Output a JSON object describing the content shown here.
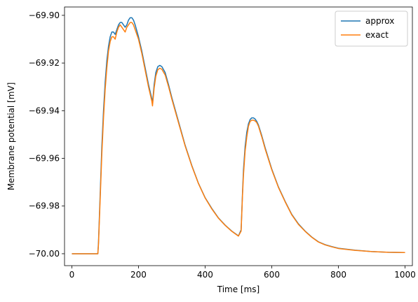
{
  "chart_data": {
    "type": "line",
    "xlabel": "Time [ms]",
    "ylabel": "Membrane potential [mV]",
    "xlim": [
      -22,
      1022
    ],
    "ylim": [
      -70.005,
      -69.8965
    ],
    "xticks": [
      0,
      200,
      400,
      600,
      800,
      1000
    ],
    "xtick_labels": [
      "0",
      "200",
      "400",
      "600",
      "800",
      "1000"
    ],
    "yticks": [
      -70.0,
      -69.98,
      -69.96,
      -69.94,
      -69.92,
      -69.9
    ],
    "ytick_labels": [
      "−70.00",
      "−69.98",
      "−69.96",
      "−69.94",
      "−69.92",
      "−69.90"
    ],
    "grid": false,
    "legend": "top-right",
    "series": [
      {
        "name": "approx",
        "color": "#1f77b4",
        "x": [
          0,
          78,
          80,
          85,
          90,
          95,
          100,
          105,
          110,
          115,
          120,
          125,
          130,
          135,
          140,
          145,
          150,
          155,
          160,
          165,
          170,
          175,
          180,
          185,
          190,
          200,
          210,
          220,
          230,
          240,
          242,
          247,
          252,
          258,
          264,
          270,
          280,
          290,
          300,
          320,
          340,
          360,
          380,
          400,
          420,
          440,
          460,
          480,
          500,
          508,
          512,
          515,
          520,
          525,
          530,
          535,
          540,
          545,
          550,
          555,
          560,
          570,
          580,
          600,
          620,
          640,
          660,
          680,
          700,
          720,
          740,
          760,
          780,
          800,
          850,
          900,
          950,
          1000
        ],
        "y": [
          -70.0,
          -70.0,
          -69.995,
          -69.975,
          -69.955,
          -69.94,
          -69.928,
          -69.919,
          -69.913,
          -69.909,
          -69.907,
          -69.907,
          -69.908,
          -69.906,
          -69.904,
          -69.903,
          -69.903,
          -69.904,
          -69.905,
          -69.904,
          -69.902,
          -69.901,
          -69.901,
          -69.902,
          -69.904,
          -69.909,
          -69.915,
          -69.922,
          -69.929,
          -69.935,
          -69.937,
          -69.929,
          -69.924,
          -69.9215,
          -69.921,
          -69.9215,
          -69.924,
          -69.929,
          -69.9345,
          -69.9445,
          -69.9545,
          -69.963,
          -69.9705,
          -69.9765,
          -69.981,
          -69.985,
          -69.988,
          -69.9905,
          -69.9925,
          -69.99,
          -69.975,
          -69.965,
          -69.955,
          -69.949,
          -69.9455,
          -69.9437,
          -69.943,
          -69.943,
          -69.9435,
          -69.9445,
          -69.946,
          -69.9505,
          -69.9555,
          -69.9645,
          -69.972,
          -69.978,
          -69.9835,
          -69.9875,
          -69.9905,
          -69.993,
          -69.995,
          -69.9962,
          -69.997,
          -69.9977,
          -69.9985,
          -69.9991,
          -69.9994,
          -69.9995
        ]
      },
      {
        "name": "exact",
        "color": "#ff7f0e",
        "x": [
          0,
          78,
          80,
          85,
          90,
          95,
          100,
          105,
          110,
          115,
          120,
          125,
          130,
          135,
          140,
          145,
          150,
          155,
          160,
          165,
          170,
          175,
          180,
          185,
          190,
          200,
          210,
          220,
          230,
          240,
          242,
          247,
          252,
          258,
          264,
          270,
          280,
          290,
          300,
          320,
          340,
          360,
          380,
          400,
          420,
          440,
          460,
          480,
          500,
          508,
          512,
          515,
          520,
          525,
          530,
          535,
          540,
          545,
          550,
          555,
          560,
          570,
          580,
          600,
          620,
          640,
          660,
          680,
          700,
          720,
          740,
          760,
          780,
          800,
          850,
          900,
          950,
          1000
        ],
        "y": [
          -70.0,
          -70.0,
          -69.996,
          -69.977,
          -69.958,
          -69.943,
          -69.931,
          -69.922,
          -69.915,
          -69.911,
          -69.909,
          -69.909,
          -69.91,
          -69.907,
          -69.905,
          -69.904,
          -69.905,
          -69.906,
          -69.907,
          -69.905,
          -69.904,
          -69.903,
          -69.903,
          -69.904,
          -69.906,
          -69.91,
          -69.916,
          -69.923,
          -69.93,
          -69.936,
          -69.938,
          -69.9305,
          -69.9255,
          -69.9228,
          -69.9222,
          -69.9226,
          -69.925,
          -69.9298,
          -69.9351,
          -69.945,
          -69.9548,
          -69.9632,
          -69.9706,
          -69.9766,
          -69.9812,
          -69.9851,
          -69.9881,
          -69.9906,
          -69.9926,
          -69.9905,
          -69.976,
          -69.967,
          -69.957,
          -69.951,
          -69.9465,
          -69.9445,
          -69.944,
          -69.944,
          -69.9443,
          -69.945,
          -69.9465,
          -69.951,
          -69.956,
          -69.9648,
          -69.9722,
          -69.9782,
          -69.9837,
          -69.9877,
          -69.9906,
          -69.9931,
          -69.9951,
          -69.9963,
          -69.9971,
          -69.9978,
          -69.9986,
          -69.9991,
          -69.9994,
          -69.9995
        ]
      }
    ]
  }
}
